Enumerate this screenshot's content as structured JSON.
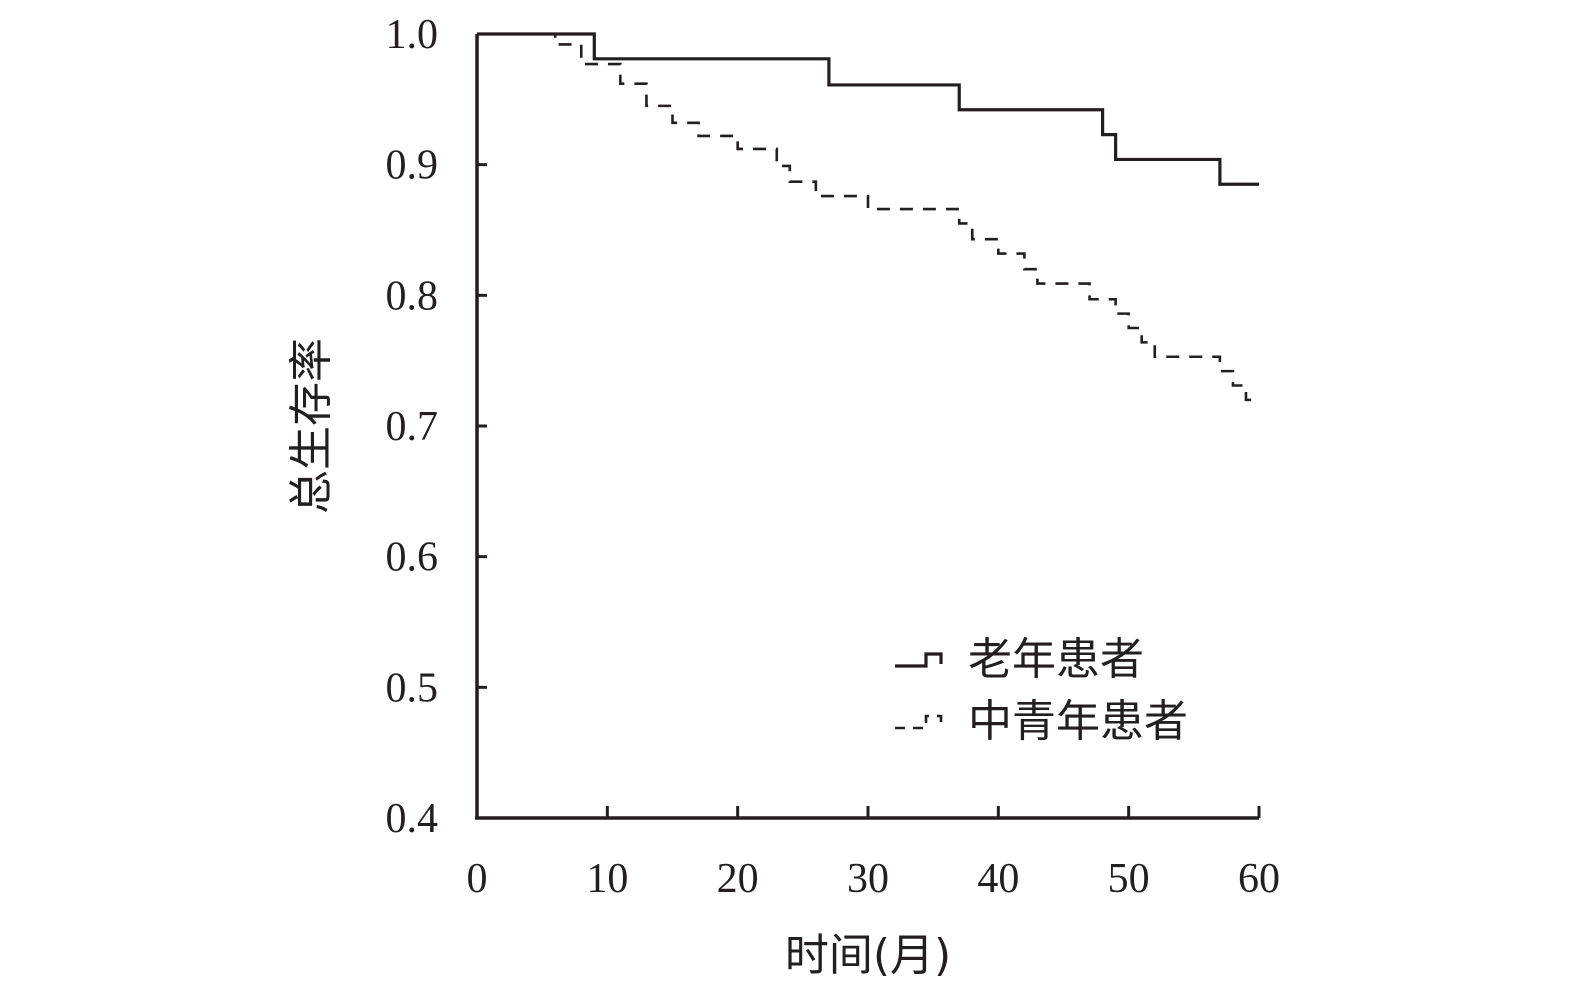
{
  "chart_data": {
    "type": "line",
    "title": "",
    "xlabel": "时间(月)",
    "ylabel": "总生存率",
    "xlim": [
      0,
      60
    ],
    "ylim": [
      0.4,
      1.0
    ],
    "x_ticks": [
      "0",
      "10",
      "20",
      "30",
      "40",
      "50",
      "60"
    ],
    "y_ticks": [
      "0.4",
      "0.5",
      "0.6",
      "0.7",
      "0.8",
      "0.9",
      "1.0"
    ],
    "grid": false,
    "legend_position": "bottom-right",
    "series": [
      {
        "name": "老年患者",
        "style": "solid",
        "color": "#231f20",
        "steps": [
          [
            0,
            1.0
          ],
          [
            9,
            0.981
          ],
          [
            27,
            0.961
          ],
          [
            37,
            0.942
          ],
          [
            48,
            0.923
          ],
          [
            49,
            0.904
          ],
          [
            57,
            0.885
          ],
          [
            60,
            0.885
          ]
        ]
      },
      {
        "name": "中青年患者",
        "style": "dashed",
        "color": "#231f20",
        "steps": [
          [
            0,
            1.0
          ],
          [
            6,
            0.992
          ],
          [
            8,
            0.977
          ],
          [
            11,
            0.962
          ],
          [
            13,
            0.945
          ],
          [
            15,
            0.932
          ],
          [
            17,
            0.922
          ],
          [
            20,
            0.912
          ],
          [
            23,
            0.899
          ],
          [
            24,
            0.887
          ],
          [
            26,
            0.876
          ],
          [
            30,
            0.866
          ],
          [
            37,
            0.855
          ],
          [
            38,
            0.843
          ],
          [
            40,
            0.832
          ],
          [
            42,
            0.82
          ],
          [
            43,
            0.809
          ],
          [
            47,
            0.797
          ],
          [
            49,
            0.786
          ],
          [
            50,
            0.775
          ],
          [
            51,
            0.764
          ],
          [
            52,
            0.753
          ],
          [
            57,
            0.742
          ],
          [
            58,
            0.731
          ],
          [
            59,
            0.72
          ],
          [
            60,
            0.72
          ]
        ]
      }
    ]
  }
}
